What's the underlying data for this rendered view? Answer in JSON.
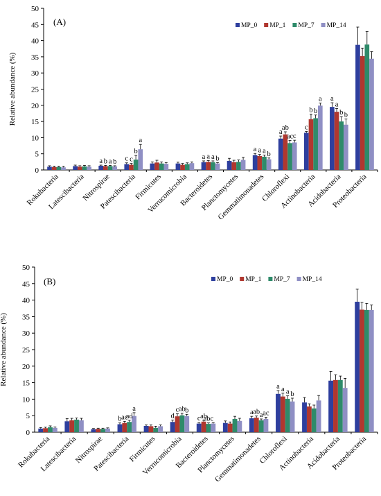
{
  "colors": {
    "MP_0": "#2e3f9e",
    "MP_1": "#b0372f",
    "MP_7": "#2e8b6a",
    "MP_14": "#8f8fc4",
    "axis": "#000000"
  },
  "chart_data": [
    {
      "type": "bar",
      "panel_label": "(A)",
      "ylabel": "Relative abundance (%)",
      "ylim": [
        0,
        50
      ],
      "yticks": [
        0,
        5,
        10,
        15,
        20,
        25,
        30,
        35,
        40,
        45,
        50
      ],
      "legend_position": "top-right",
      "categories": [
        "Rokubacteria",
        "Latescibacteria",
        "Nitrospirae",
        "Patescibacteria",
        "Firmicutes",
        "Verrucomicrobia",
        "Bacteroidetes",
        "Planctomycetes",
        "Gemmatimonadetes",
        "Chloroflexi",
        "Actinobacteria",
        "Acidobacteria",
        "Proteobacteria"
      ],
      "series": [
        {
          "name": "MP_0",
          "values": [
            1.0,
            1.2,
            1.3,
            1.8,
            2.0,
            2.0,
            2.4,
            2.8,
            4.6,
            9.7,
            11.5,
            19.5,
            38.7
          ],
          "errors": [
            0.3,
            0.3,
            0.2,
            0.4,
            0.5,
            0.4,
            0.4,
            0.8,
            0.5,
            0.8,
            0.4,
            1.3,
            5.5
          ]
        },
        {
          "name": "MP_1",
          "values": [
            0.9,
            1.0,
            1.2,
            1.6,
            2.3,
            1.6,
            2.5,
            2.4,
            4.3,
            11.0,
            15.7,
            18.0,
            35.2
          ],
          "errors": [
            0.3,
            0.3,
            0.2,
            0.4,
            0.7,
            0.4,
            0.4,
            0.6,
            0.5,
            0.8,
            1.6,
            1.0,
            2.5
          ]
        },
        {
          "name": "MP_7",
          "values": [
            0.9,
            1.1,
            1.2,
            3.2,
            2.0,
            1.8,
            2.4,
            2.5,
            4.1,
            8.3,
            16.0,
            15.0,
            38.8
          ],
          "errors": [
            0.3,
            0.3,
            0.2,
            1.3,
            0.5,
            0.4,
            0.4,
            0.6,
            0.5,
            0.8,
            1.0,
            1.5,
            4.0
          ]
        },
        {
          "name": "MP_14",
          "values": [
            0.8,
            1.0,
            1.1,
            6.4,
            1.9,
            2.1,
            2.0,
            3.1,
            3.3,
            8.5,
            19.9,
            14.0,
            34.4
          ],
          "errors": [
            0.3,
            0.3,
            0.2,
            1.5,
            0.4,
            0.4,
            0.3,
            0.8,
            0.4,
            0.7,
            0.8,
            1.8,
            2.2
          ]
        }
      ],
      "annotations": [
        {
          "category": "Nitrospirae",
          "labels": [
            "a",
            "b",
            "a",
            "b"
          ]
        },
        {
          "category": "Patescibacteria",
          "labels": [
            "c",
            "c",
            "b",
            "a"
          ]
        },
        {
          "category": "Bacteroidetes",
          "labels": [
            "a",
            "a",
            "a",
            "b"
          ]
        },
        {
          "category": "Gemmatimonadetes",
          "labels": [
            "a",
            "a",
            "a",
            "b"
          ]
        },
        {
          "category": "Chloroflexi",
          "labels": [
            "a",
            "ab",
            "ac",
            "c"
          ]
        },
        {
          "category": "Actinobacteria",
          "labels": [
            "c",
            "b",
            "b",
            "a"
          ]
        },
        {
          "category": "Acidobacteria",
          "labels": [
            "a",
            "a",
            "b",
            "b"
          ]
        }
      ]
    },
    {
      "type": "bar",
      "panel_label": "(B)",
      "ylabel": "Relative abundance (%)",
      "ylim": [
        0,
        50
      ],
      "yticks": [
        0,
        5,
        10,
        15,
        20,
        25,
        30,
        35,
        40,
        45,
        50
      ],
      "legend_position": "top-right",
      "categories": [
        "Rokubacteria",
        "Latescibacteria",
        "Nitrospirae",
        "Patescibacteria",
        "Firmicutes",
        "Verrucomicrobia",
        "Bacteroidetes",
        "Planctomycetes",
        "Gemmatimonadetes",
        "Chloroflexi",
        "Actinobacteria",
        "Acidobacteria",
        "Proteobacteria"
      ],
      "series": [
        {
          "name": "MP_0",
          "values": [
            1.1,
            3.3,
            0.9,
            2.4,
            1.9,
            3.1,
            2.6,
            2.8,
            4.2,
            11.6,
            9.0,
            15.6,
            39.5
          ],
          "errors": [
            0.3,
            0.8,
            0.2,
            0.4,
            0.3,
            0.6,
            0.3,
            0.6,
            0.6,
            1.0,
            1.5,
            2.8,
            3.8
          ]
        },
        {
          "name": "MP_1",
          "values": [
            1.2,
            3.6,
            1.0,
            2.8,
            1.8,
            4.8,
            3.2,
            2.6,
            4.4,
            10.8,
            7.8,
            15.8,
            37.1
          ],
          "errors": [
            0.3,
            0.6,
            0.2,
            0.5,
            0.4,
            0.8,
            0.4,
            0.5,
            0.5,
            1.0,
            0.8,
            1.6,
            2.2
          ]
        },
        {
          "name": "MP_7",
          "values": [
            1.5,
            3.8,
            1.0,
            3.1,
            1.3,
            5.1,
            2.5,
            4.0,
            3.6,
            10.1,
            7.2,
            15.8,
            37.0
          ],
          "errors": [
            0.4,
            0.5,
            0.2,
            0.5,
            0.5,
            0.7,
            0.3,
            0.8,
            0.4,
            0.9,
            1.0,
            1.2,
            2.0
          ]
        },
        {
          "name": "MP_14",
          "values": [
            1.3,
            3.6,
            1.1,
            4.9,
            1.8,
            4.9,
            2.6,
            3.4,
            4.0,
            9.3,
            9.6,
            13.4,
            37.0
          ],
          "errors": [
            0.3,
            0.6,
            0.2,
            1.0,
            0.4,
            0.5,
            0.3,
            0.8,
            0.5,
            1.0,
            1.5,
            2.9,
            1.5
          ]
        }
      ],
      "annotations": [
        {
          "category": "Patescibacteria",
          "labels": [
            "b",
            "ac",
            "ad",
            "a"
          ]
        },
        {
          "category": "Verrucomicrobia",
          "labels": [
            "d",
            "c",
            "ab",
            "b"
          ]
        },
        {
          "category": "Bacteroidetes",
          "labels": [
            "c",
            "ab",
            "abc",
            ""
          ]
        },
        {
          "category": "Gemmatimonadetes",
          "labels": [
            "a",
            "ab",
            "a",
            "ac"
          ]
        },
        {
          "category": "Chloroflexi",
          "labels": [
            "a",
            "a",
            "a",
            "b"
          ]
        }
      ]
    }
  ]
}
